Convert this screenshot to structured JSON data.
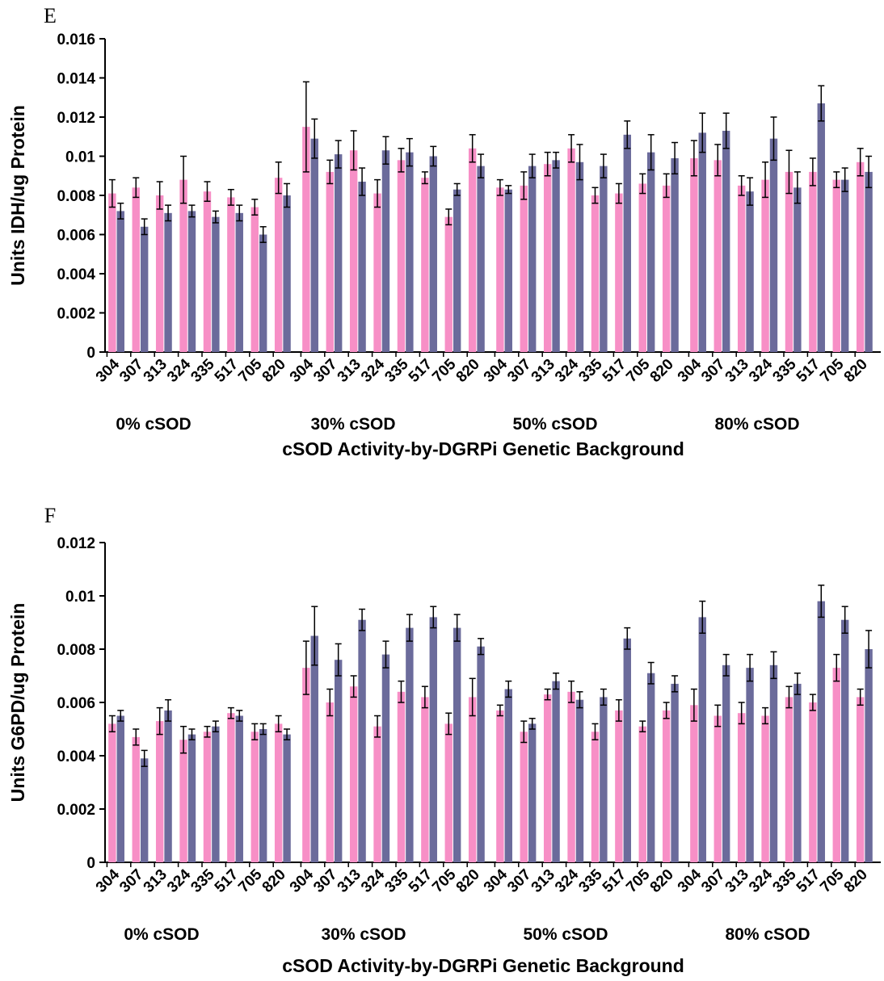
{
  "chart_data": [
    {
      "type": "bar",
      "panel": "E",
      "ylabel": "Units IDH/ug Protein",
      "xlabel": "cSOD Activity-by-DGRPi Genetic Background",
      "ylim": [
        0,
        0.016
      ],
      "yticks": [
        "0",
        "0.002",
        "0.004",
        "0.006",
        "0.008",
        "0.01",
        "0.012",
        "0.014",
        "0.016"
      ],
      "groups": [
        "0% cSOD",
        "30% cSOD",
        "50% cSOD",
        "80% cSOD"
      ],
      "categories": [
        "304",
        "307",
        "313",
        "324",
        "335",
        "517",
        "705",
        "820"
      ],
      "colors": [
        "#F78FC6",
        "#6B6B9B"
      ],
      "series": [
        {
          "values": [
            [
              0.0081,
              0.0084,
              0.008,
              0.0088,
              0.0082,
              0.0079,
              0.0074,
              0.0089
            ],
            [
              0.0115,
              0.0092,
              0.0103,
              0.0081,
              0.0098,
              0.0089,
              0.0069,
              0.0104
            ],
            [
              0.0084,
              0.0085,
              0.0096,
              0.0104,
              0.008,
              0.0081,
              0.0086,
              0.0085
            ],
            [
              0.0099,
              0.0098,
              0.0085,
              0.0088,
              0.0092,
              0.0092,
              0.0088,
              0.0097
            ]
          ],
          "errors": [
            [
              0.0007,
              0.0005,
              0.0007,
              0.0012,
              0.0005,
              0.0004,
              0.0004,
              0.0008
            ],
            [
              0.0023,
              0.0006,
              0.001,
              0.0007,
              0.0006,
              0.0003,
              0.0004,
              0.0007
            ],
            [
              0.0004,
              0.0007,
              0.0006,
              0.0007,
              0.0004,
              0.0005,
              0.0005,
              0.0006
            ],
            [
              0.0009,
              0.0008,
              0.0005,
              0.0009,
              0.0011,
              0.0007,
              0.0004,
              0.0007
            ]
          ]
        },
        {
          "values": [
            [
              0.0072,
              0.0064,
              0.0071,
              0.0072,
              0.0069,
              0.0071,
              0.006,
              0.008
            ],
            [
              0.0109,
              0.0101,
              0.0087,
              0.0103,
              0.0102,
              0.01,
              0.0083,
              0.0095
            ],
            [
              0.0083,
              0.0095,
              0.0098,
              0.0097,
              0.0095,
              0.0111,
              0.0102,
              0.0099
            ],
            [
              0.0112,
              0.0113,
              0.0082,
              0.0109,
              0.0084,
              0.0127,
              0.0088,
              0.0092
            ]
          ],
          "errors": [
            [
              0.0004,
              0.0004,
              0.0004,
              0.0003,
              0.0003,
              0.0004,
              0.0004,
              0.0006
            ],
            [
              0.001,
              0.0007,
              0.0007,
              0.0007,
              0.0007,
              0.0005,
              0.0003,
              0.0006
            ],
            [
              0.0002,
              0.0006,
              0.0004,
              0.0009,
              0.0006,
              0.0007,
              0.0009,
              0.0008
            ],
            [
              0.001,
              0.0009,
              0.0007,
              0.0011,
              0.0008,
              0.0009,
              0.0006,
              0.0008
            ]
          ]
        }
      ]
    },
    {
      "type": "bar",
      "panel": "F",
      "ylabel": "Units G6PD/ug Protein",
      "xlabel": "cSOD Activity-by-DGRPi Genetic Background",
      "ylim": [
        0,
        0.012
      ],
      "yticks": [
        "0",
        "0.002",
        "0.004",
        "0.006",
        "0.008",
        "0.01",
        "0.012"
      ],
      "groups": [
        "0% cSOD",
        "30% cSOD",
        "50% cSOD",
        "80% cSOD"
      ],
      "categories": [
        "304",
        "307",
        "313",
        "324",
        "335",
        "517",
        "705",
        "820"
      ],
      "colors": [
        "#F78FC6",
        "#6B6B9B"
      ],
      "series": [
        {
          "values": [
            [
              0.0052,
              0.0047,
              0.0053,
              0.0046,
              0.0049,
              0.0056,
              0.0049,
              0.0052
            ],
            [
              0.0073,
              0.006,
              0.0066,
              0.0051,
              0.0064,
              0.0062,
              0.0052,
              0.0062
            ],
            [
              0.0057,
              0.0049,
              0.0063,
              0.0064,
              0.0049,
              0.0057,
              0.0051,
              0.0057
            ],
            [
              0.0059,
              0.0055,
              0.0056,
              0.0055,
              0.0062,
              0.006,
              0.0073,
              0.0062
            ]
          ],
          "errors": [
            [
              0.0003,
              0.0003,
              0.0005,
              0.0005,
              0.0002,
              0.0002,
              0.0003,
              0.0003
            ],
            [
              0.001,
              0.0005,
              0.0004,
              0.0004,
              0.0004,
              0.0004,
              0.0004,
              0.0007
            ],
            [
              0.0002,
              0.0004,
              0.0002,
              0.0004,
              0.0003,
              0.0004,
              0.0002,
              0.0003
            ],
            [
              0.0006,
              0.0004,
              0.0004,
              0.0003,
              0.0004,
              0.0003,
              0.0005,
              0.0003
            ]
          ]
        },
        {
          "values": [
            [
              0.0055,
              0.0039,
              0.0057,
              0.0048,
              0.0051,
              0.0055,
              0.005,
              0.0048
            ],
            [
              0.0085,
              0.0076,
              0.0091,
              0.0078,
              0.0088,
              0.0092,
              0.0088,
              0.0081
            ],
            [
              0.0065,
              0.0052,
              0.0068,
              0.0061,
              0.0062,
              0.0084,
              0.0071,
              0.0067
            ],
            [
              0.0092,
              0.0074,
              0.0073,
              0.0074,
              0.0067,
              0.0098,
              0.0091,
              0.008
            ]
          ],
          "errors": [
            [
              0.0002,
              0.0003,
              0.0004,
              0.0002,
              0.0002,
              0.0002,
              0.0002,
              0.0002
            ],
            [
              0.0011,
              0.0006,
              0.0004,
              0.0005,
              0.0005,
              0.0004,
              0.0005,
              0.0003
            ],
            [
              0.0003,
              0.0002,
              0.0003,
              0.0003,
              0.0003,
              0.0004,
              0.0004,
              0.0003
            ],
            [
              0.0006,
              0.0004,
              0.0005,
              0.0005,
              0.0004,
              0.0006,
              0.0005,
              0.0007
            ]
          ]
        }
      ]
    }
  ]
}
